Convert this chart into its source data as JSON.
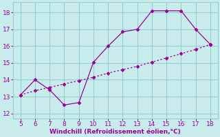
{
  "x": [
    5,
    6,
    7,
    8,
    9,
    10,
    11,
    12,
    13,
    14,
    15,
    16,
    17,
    18
  ],
  "y_main": [
    13.1,
    14.0,
    13.4,
    12.5,
    12.65,
    15.05,
    16.0,
    16.85,
    17.0,
    18.1,
    18.1,
    18.1,
    17.0,
    16.1
  ],
  "y_trend": [
    13.1,
    13.35,
    13.55,
    13.75,
    13.95,
    14.15,
    14.4,
    14.6,
    14.8,
    15.05,
    15.3,
    15.55,
    15.8,
    16.1
  ],
  "line_color": "#990099",
  "bg_color": "#c8ecec",
  "grid_color": "#99cccc",
  "xlabel": "Windchill (Refroidissement éolien,°C)",
  "xlabel_color": "#990099",
  "tick_color": "#990099",
  "xlim": [
    4.5,
    18.5
  ],
  "ylim": [
    11.7,
    18.6
  ],
  "xticks": [
    5,
    6,
    7,
    8,
    9,
    10,
    11,
    12,
    13,
    14,
    15,
    16,
    17,
    18
  ],
  "yticks": [
    12,
    13,
    14,
    15,
    16,
    17,
    18
  ]
}
